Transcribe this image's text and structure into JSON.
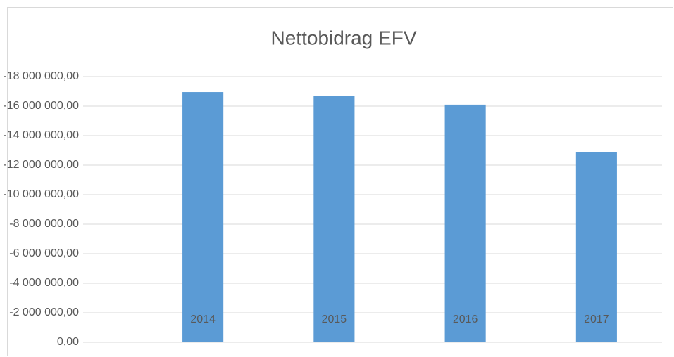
{
  "chart_data": {
    "type": "bar",
    "title": "Nettobidrag EFV",
    "categories": [
      "2014",
      "2015",
      "2016",
      "2017"
    ],
    "values": [
      -16950000,
      -16700000,
      -16100000,
      -12900000
    ],
    "color": "#5b9bd5",
    "ylim": [
      0,
      -18000000
    ],
    "yticks": [
      {
        "value": 0,
        "label": "0,00"
      },
      {
        "value": -2000000,
        "label": "-2 000 000,00"
      },
      {
        "value": -4000000,
        "label": "-4 000 000,00"
      },
      {
        "value": -6000000,
        "label": "-6 000 000,00"
      },
      {
        "value": -8000000,
        "label": "-8 000 000,00"
      },
      {
        "value": -10000000,
        "label": "-10 000 000,00"
      },
      {
        "value": -12000000,
        "label": "-12 000 000,00"
      },
      {
        "value": -14000000,
        "label": "-14 000 000,00"
      },
      {
        "value": -16000000,
        "label": "-16 000 000,00"
      },
      {
        "value": -18000000,
        "label": "-18 000 000,00"
      }
    ],
    "grid": true
  }
}
